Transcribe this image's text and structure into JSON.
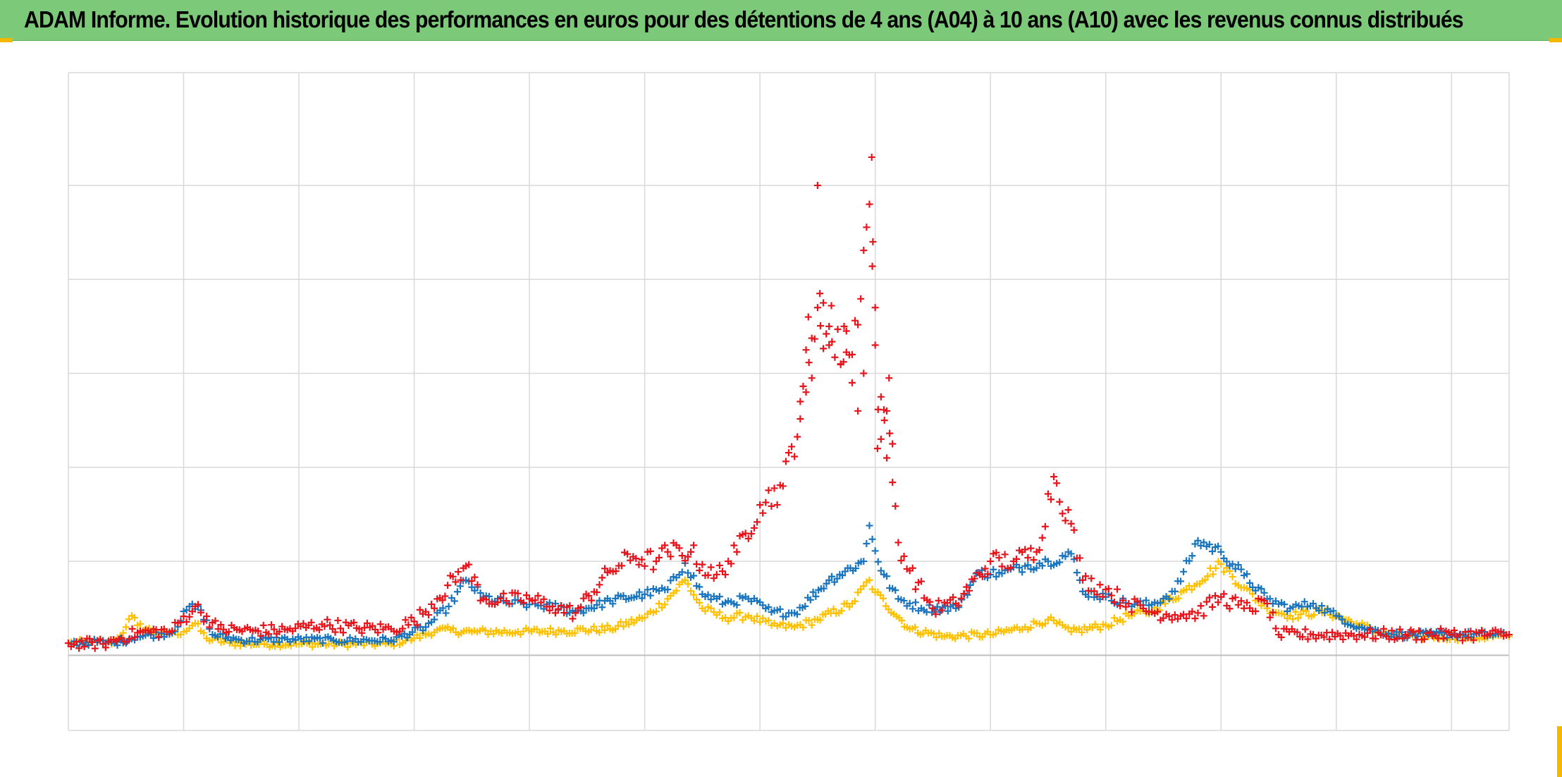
{
  "header": {
    "title": "ADAM Informe. Evolution historique des performances en euros pour des détentions de 4 ans (A04) à 10 ans (A10) avec les revenus connus distribués"
  },
  "colors": {
    "header_bg": "#7dc97a",
    "corner_accent": "#f5b800",
    "grid": "#d9d9d9",
    "series_red": "#e8141b",
    "series_blue": "#1a75bf",
    "series_yellow": "#ffc000"
  },
  "chart_data": {
    "type": "scatter",
    "marker": "plus",
    "title": "ADAM Informe. Evolution historique des performances en euros pour des détentions de 4 ans (A04) à 10 ans (A10) avec les revenus connus distribués",
    "xlabel": "",
    "ylabel": "",
    "xlim": [
      0,
      12.5
    ],
    "ylim": [
      -0.8,
      6.2
    ],
    "x_grid_count": 12,
    "y_gridlines": [
      -0.8,
      0,
      1,
      2,
      3,
      4,
      5,
      6.2
    ],
    "grid": true,
    "tick_labels_visible": false,
    "legend": "none",
    "series": [
      {
        "color": "#ffc000",
        "points": [
          [
            0.0,
            0.13
          ],
          [
            0.2,
            0.14
          ],
          [
            0.4,
            0.14
          ],
          [
            0.5,
            0.3
          ],
          [
            0.55,
            0.42
          ],
          [
            0.6,
            0.32
          ],
          [
            0.8,
            0.22
          ],
          [
            1.0,
            0.25
          ],
          [
            1.1,
            0.34
          ],
          [
            1.2,
            0.18
          ],
          [
            1.4,
            0.13
          ],
          [
            1.7,
            0.12
          ],
          [
            2.0,
            0.12
          ],
          [
            2.4,
            0.12
          ],
          [
            2.8,
            0.12
          ],
          [
            3.0,
            0.18
          ],
          [
            3.2,
            0.27
          ],
          [
            3.5,
            0.25
          ],
          [
            3.9,
            0.25
          ],
          [
            4.3,
            0.26
          ],
          [
            4.7,
            0.28
          ],
          [
            5.0,
            0.4
          ],
          [
            5.2,
            0.6
          ],
          [
            5.35,
            0.8
          ],
          [
            5.5,
            0.5
          ],
          [
            5.7,
            0.4
          ],
          [
            5.9,
            0.42
          ],
          [
            6.1,
            0.32
          ],
          [
            6.3,
            0.3
          ],
          [
            6.5,
            0.38
          ],
          [
            6.8,
            0.55
          ],
          [
            6.95,
            0.8
          ],
          [
            7.0,
            0.67
          ],
          [
            7.3,
            0.28
          ],
          [
            7.6,
            0.2
          ],
          [
            8.0,
            0.22
          ],
          [
            8.3,
            0.3
          ],
          [
            8.5,
            0.38
          ],
          [
            8.7,
            0.25
          ],
          [
            9.0,
            0.32
          ],
          [
            9.2,
            0.42
          ],
          [
            9.4,
            0.47
          ],
          [
            9.7,
            0.7
          ],
          [
            10.0,
            0.97
          ],
          [
            10.2,
            0.72
          ],
          [
            10.4,
            0.5
          ],
          [
            10.6,
            0.42
          ],
          [
            10.9,
            0.47
          ],
          [
            11.2,
            0.32
          ],
          [
            11.5,
            0.2
          ],
          [
            11.8,
            0.2
          ],
          [
            12.1,
            0.19
          ],
          [
            12.5,
            0.2
          ]
        ]
      },
      {
        "color": "#1a75bf",
        "points": [
          [
            0.0,
            0.13
          ],
          [
            0.2,
            0.14
          ],
          [
            0.4,
            0.13
          ],
          [
            0.6,
            0.2
          ],
          [
            0.9,
            0.24
          ],
          [
            1.05,
            0.52
          ],
          [
            1.15,
            0.48
          ],
          [
            1.25,
            0.22
          ],
          [
            1.5,
            0.16
          ],
          [
            1.9,
            0.17
          ],
          [
            2.3,
            0.16
          ],
          [
            2.8,
            0.16
          ],
          [
            3.1,
            0.3
          ],
          [
            3.3,
            0.52
          ],
          [
            3.45,
            0.8
          ],
          [
            3.6,
            0.62
          ],
          [
            3.8,
            0.56
          ],
          [
            4.0,
            0.54
          ],
          [
            4.2,
            0.52
          ],
          [
            4.4,
            0.46
          ],
          [
            4.7,
            0.58
          ],
          [
            5.0,
            0.65
          ],
          [
            5.2,
            0.7
          ],
          [
            5.35,
            0.98
          ],
          [
            5.5,
            0.65
          ],
          [
            5.7,
            0.56
          ],
          [
            5.9,
            0.6
          ],
          [
            6.1,
            0.46
          ],
          [
            6.3,
            0.45
          ],
          [
            6.6,
            0.8
          ],
          [
            6.9,
            1.0
          ],
          [
            6.95,
            1.38
          ],
          [
            7.05,
            0.9
          ],
          [
            7.2,
            0.6
          ],
          [
            7.4,
            0.5
          ],
          [
            7.7,
            0.5
          ],
          [
            7.9,
            0.88
          ],
          [
            8.1,
            0.87
          ],
          [
            8.3,
            0.95
          ],
          [
            8.5,
            1.0
          ],
          [
            8.7,
            1.08
          ],
          [
            8.8,
            0.68
          ],
          [
            9.0,
            0.62
          ],
          [
            9.2,
            0.55
          ],
          [
            9.4,
            0.54
          ],
          [
            9.6,
            0.68
          ],
          [
            9.8,
            1.22
          ],
          [
            10.0,
            1.1
          ],
          [
            10.2,
            0.85
          ],
          [
            10.4,
            0.6
          ],
          [
            10.6,
            0.5
          ],
          [
            10.8,
            0.55
          ],
          [
            11.0,
            0.42
          ],
          [
            11.2,
            0.3
          ],
          [
            11.5,
            0.22
          ],
          [
            11.8,
            0.22
          ],
          [
            12.1,
            0.22
          ],
          [
            12.5,
            0.22
          ]
        ]
      },
      {
        "color": "#e8141b",
        "points": [
          [
            0.0,
            0.13
          ],
          [
            0.3,
            0.12
          ],
          [
            0.6,
            0.24
          ],
          [
            0.9,
            0.26
          ],
          [
            1.1,
            0.52
          ],
          [
            1.3,
            0.28
          ],
          [
            1.6,
            0.26
          ],
          [
            1.9,
            0.27
          ],
          [
            2.2,
            0.33
          ],
          [
            2.5,
            0.29
          ],
          [
            2.8,
            0.28
          ],
          [
            3.0,
            0.36
          ],
          [
            3.2,
            0.6
          ],
          [
            3.45,
            0.95
          ],
          [
            3.6,
            0.6
          ],
          [
            3.8,
            0.58
          ],
          [
            4.0,
            0.6
          ],
          [
            4.2,
            0.52
          ],
          [
            4.4,
            0.45
          ],
          [
            4.7,
            0.9
          ],
          [
            4.9,
            1.05
          ],
          [
            5.1,
            1.0
          ],
          [
            5.2,
            1.1
          ],
          [
            5.4,
            1.1
          ],
          [
            5.6,
            0.82
          ],
          [
            5.8,
            1.1
          ],
          [
            6.0,
            1.6
          ],
          [
            6.2,
            1.8
          ],
          [
            6.4,
            2.8
          ],
          [
            6.5,
            3.7
          ],
          [
            6.6,
            3.3
          ],
          [
            6.8,
            3.2
          ],
          [
            6.95,
            4.8
          ],
          [
            7.0,
            3.3
          ],
          [
            7.05,
            2.3
          ],
          [
            7.1,
            2.6
          ],
          [
            7.2,
            1.2
          ],
          [
            7.3,
            0.9
          ],
          [
            7.5,
            0.5
          ],
          [
            7.7,
            0.55
          ],
          [
            8.0,
            1.0
          ],
          [
            8.2,
            1.0
          ],
          [
            8.4,
            1.1
          ],
          [
            8.55,
            1.9
          ],
          [
            8.7,
            1.4
          ],
          [
            8.8,
            0.8
          ],
          [
            9.0,
            0.7
          ],
          [
            9.2,
            0.55
          ],
          [
            9.4,
            0.46
          ],
          [
            9.6,
            0.43
          ],
          [
            9.8,
            0.45
          ],
          [
            10.0,
            0.62
          ],
          [
            10.2,
            0.5
          ],
          [
            10.4,
            0.55
          ],
          [
            10.5,
            0.22
          ],
          [
            10.8,
            0.22
          ],
          [
            11.2,
            0.22
          ],
          [
            11.6,
            0.22
          ],
          [
            12.0,
            0.22
          ],
          [
            12.5,
            0.22
          ]
        ]
      }
    ]
  }
}
